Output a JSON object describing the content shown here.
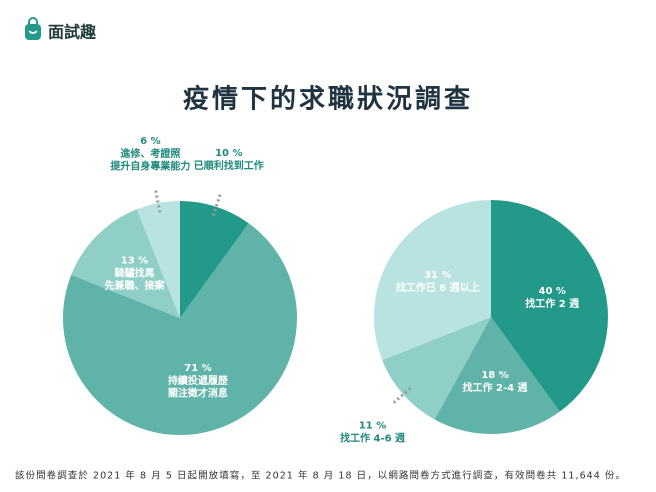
{
  "header": {
    "brand": "面試趣"
  },
  "title": "疫情下的求職狀況調查",
  "chart_data": [
    {
      "type": "pie",
      "categories": [
        "已順利找到工作",
        "持續投遞履歷\n關注徵才消息",
        "騎驢找馬\n先兼職、接案",
        "進修、考證照\n提升自身專業能力"
      ],
      "values": [
        10,
        71,
        13,
        6
      ],
      "value_labels": [
        "10 %",
        "71 %",
        "13 %",
        "6 %"
      ],
      "colors": [
        "#23998a",
        "#5fb3a8",
        "#8fcfc7",
        "#b8e3e0"
      ]
    },
    {
      "type": "pie",
      "categories": [
        "找工作 2 週",
        "找工作 2-4 週",
        "找工作 4-6 週",
        "找工作已 6 週以上"
      ],
      "values": [
        40,
        18,
        11,
        31
      ],
      "value_labels": [
        "40 %",
        "18 %",
        "11 %",
        "31 %"
      ],
      "colors": [
        "#23998a",
        "#5fb3a8",
        "#8fcfc7",
        "#b8e3e0"
      ]
    }
  ],
  "footnote": "該份問卷調查於 2021 年 8 月 5 日起開放填寫，至 2021 年 8 月 18 日，以網路問卷方式進行調查，有效問卷共 11,644 份。"
}
